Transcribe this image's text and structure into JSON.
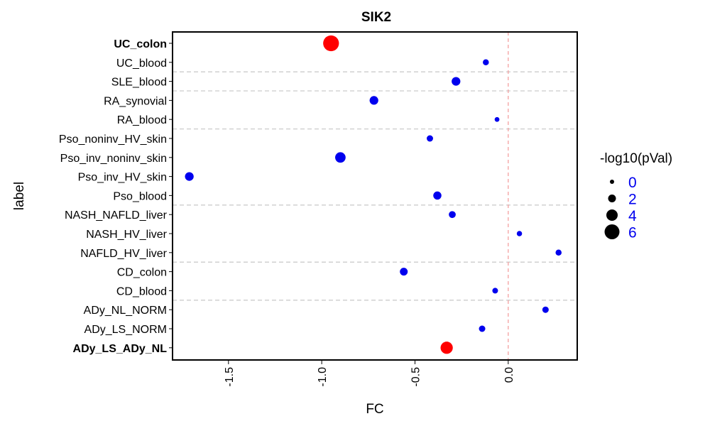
{
  "chart_data": {
    "type": "scatter",
    "title": "SIK2",
    "xlabel": "FC",
    "ylabel": "label",
    "xlim": [
      -1.8,
      0.37
    ],
    "xticks": [
      -1.5,
      -1.0,
      -0.5,
      0.0
    ],
    "xtick_labels": [
      "-1.5",
      "-1.0",
      "-0.5",
      "0.0"
    ],
    "reference_line_x": 0.0,
    "categories": [
      "UC_colon",
      "UC_blood",
      "SLE_blood",
      "RA_synovial",
      "RA_blood",
      "Pso_noninv_HV_skin",
      "Pso_inv_noninv_skin",
      "Pso_inv_HV_skin",
      "Pso_blood",
      "NASH_NAFLD_liver",
      "NASH_HV_liver",
      "NAFLD_HV_liver",
      "CD_colon",
      "CD_blood",
      "ADy_NL_NORM",
      "ADy_LS_NORM",
      "ADy_LS_ADy_NL"
    ],
    "bold_labels": [
      "UC_colon",
      "ADy_LS_ADy_NL"
    ],
    "separators_after": [
      "UC_blood",
      "SLE_blood",
      "RA_blood",
      "Pso_blood",
      "NAFLD_HV_liver",
      "CD_blood"
    ],
    "points": [
      {
        "label": "UC_colon",
        "fc": -0.95,
        "neglog10p": 6.5,
        "color": "#ff0000"
      },
      {
        "label": "UC_blood",
        "fc": -0.12,
        "neglog10p": 1.0,
        "color": "#0000ee"
      },
      {
        "label": "SLE_blood",
        "fc": -0.28,
        "neglog10p": 2.5,
        "color": "#0000ee"
      },
      {
        "label": "RA_synovial",
        "fc": -0.72,
        "neglog10p": 2.5,
        "color": "#0000ee"
      },
      {
        "label": "RA_blood",
        "fc": -0.06,
        "neglog10p": 0.3,
        "color": "#0000ee"
      },
      {
        "label": "Pso_noninv_HV_skin",
        "fc": -0.42,
        "neglog10p": 1.2,
        "color": "#0000ee"
      },
      {
        "label": "Pso_inv_noninv_skin",
        "fc": -0.9,
        "neglog10p": 3.5,
        "color": "#0000ee"
      },
      {
        "label": "Pso_inv_HV_skin",
        "fc": -1.71,
        "neglog10p": 2.5,
        "color": "#0000ee"
      },
      {
        "label": "Pso_blood",
        "fc": -0.38,
        "neglog10p": 2.2,
        "color": "#0000ee"
      },
      {
        "label": "NASH_NAFLD_liver",
        "fc": -0.3,
        "neglog10p": 1.5,
        "color": "#0000ee"
      },
      {
        "label": "NASH_HV_liver",
        "fc": 0.06,
        "neglog10p": 0.6,
        "color": "#0000ee"
      },
      {
        "label": "NAFLD_HV_liver",
        "fc": 0.27,
        "neglog10p": 1.0,
        "color": "#0000ee"
      },
      {
        "label": "CD_colon",
        "fc": -0.56,
        "neglog10p": 2.0,
        "color": "#0000ee"
      },
      {
        "label": "CD_blood",
        "fc": -0.07,
        "neglog10p": 0.8,
        "color": "#0000ee"
      },
      {
        "label": "ADy_NL_NORM",
        "fc": 0.2,
        "neglog10p": 1.2,
        "color": "#0000ee"
      },
      {
        "label": "ADy_LS_NORM",
        "fc": -0.14,
        "neglog10p": 1.2,
        "color": "#0000ee"
      },
      {
        "label": "ADy_LS_ADy_NL",
        "fc": -0.33,
        "neglog10p": 4.5,
        "color": "#ff0000"
      }
    ],
    "legend": {
      "title": "-log10(pVal)",
      "entries": [
        {
          "label": "0",
          "value": 0
        },
        {
          "label": "2",
          "value": 2
        },
        {
          "label": "4",
          "value": 4
        },
        {
          "label": "6",
          "value": 6
        }
      ],
      "position": "right"
    },
    "colors": {
      "significant": "#ff0000",
      "not_significant": "#0000ee",
      "reference_line": "#f4a0a0",
      "separator": "#cccccc"
    }
  }
}
